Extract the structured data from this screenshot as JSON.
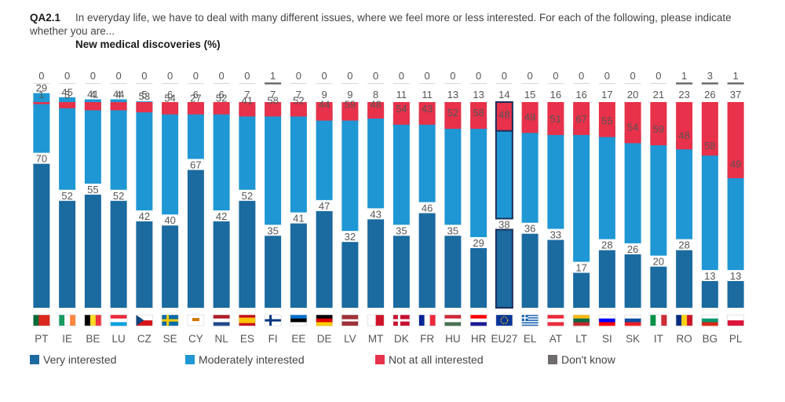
{
  "header": {
    "code": "QA2.1",
    "question": "In everyday life, we have to deal with many different issues, where we feel more or less interested. For each of the following, please indicate whether you are...",
    "subtitle": "New medical discoveries (%)"
  },
  "colors": {
    "very": "#1b6aa0",
    "moderately": "#1f97d4",
    "not": "#e8314a",
    "dontknow": "#6f6a6b",
    "highlight_border": "#1c2f5c"
  },
  "legend": [
    {
      "label": "Very interested",
      "color": "#1b6aa0"
    },
    {
      "label": "Moderately interested",
      "color": "#1f97d4"
    },
    {
      "label": "Not at all interested",
      "color": "#e8314a"
    },
    {
      "label": "Don't know",
      "color": "#6f6a6b"
    }
  ],
  "chart_data": {
    "type": "bar",
    "stacked": true,
    "highlight": "EU27",
    "categories": [
      "PT",
      "IE",
      "BE",
      "LU",
      "CZ",
      "SE",
      "CY",
      "NL",
      "ES",
      "FI",
      "EE",
      "DE",
      "LV",
      "MT",
      "DK",
      "FR",
      "HU",
      "HR",
      "EU27",
      "EL",
      "AT",
      "LT",
      "SI",
      "SK",
      "IT",
      "RO",
      "BG",
      "PL"
    ],
    "series": [
      {
        "name": "Very interested",
        "values": [
          70,
          52,
          55,
          52,
          42,
          40,
          67,
          42,
          52,
          35,
          41,
          47,
          32,
          43,
          35,
          46,
          35,
          29,
          38,
          36,
          33,
          17,
          28,
          26,
          20,
          28,
          13,
          13
        ]
      },
      {
        "name": "Moderately interested",
        "values": [
          29,
          45,
          41,
          44,
          53,
          54,
          27,
          52,
          41,
          58,
          52,
          44,
          59,
          48,
          54,
          43,
          52,
          58,
          48,
          49,
          51,
          67,
          55,
          54,
          59,
          48,
          58,
          49
        ]
      },
      {
        "name": "Not at all interested",
        "values": [
          1,
          3,
          4,
          4,
          5,
          6,
          6,
          6,
          7,
          7,
          7,
          9,
          9,
          8,
          11,
          11,
          13,
          13,
          14,
          15,
          16,
          16,
          17,
          20,
          21,
          23,
          26,
          37
        ]
      },
      {
        "name": "Don't know",
        "values": [
          0,
          0,
          0,
          0,
          0,
          0,
          0,
          0,
          0,
          1,
          0,
          0,
          0,
          0,
          0,
          0,
          0,
          0,
          0,
          0,
          0,
          0,
          0,
          0,
          0,
          1,
          3,
          1
        ]
      }
    ],
    "ylim": [
      0,
      100
    ]
  }
}
